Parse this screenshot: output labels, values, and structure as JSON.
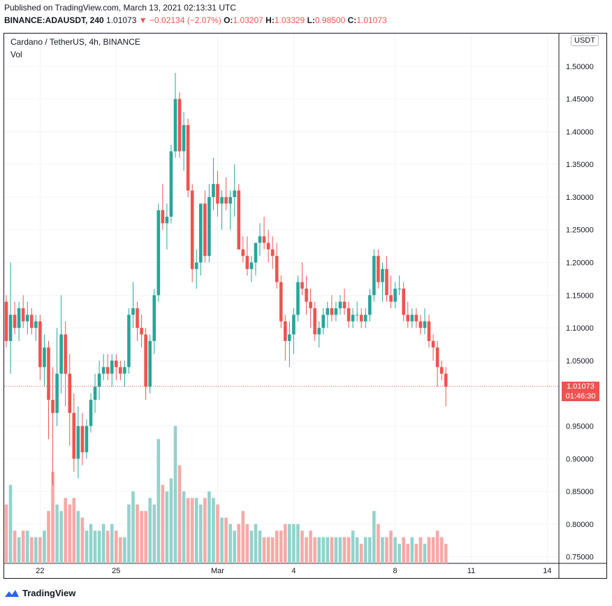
{
  "header": {
    "published": "Published on TradingView.com, March 13, 2021 02:13:31 UTC",
    "symbol": "BINANCE:ADAUSDT, 240",
    "last": "1.01073",
    "change": "−0.02134 (−2.07%)",
    "o_label": "O:",
    "o_value": "1.03207",
    "h_label": "H:",
    "h_value": "1.03329",
    "l_label": "L:",
    "l_value": "0.98500",
    "c_label": "C:",
    "c_value": "1.01073"
  },
  "legend": {
    "title": "Cardano / TetherUS, 4h, BINANCE",
    "vol": "Vol"
  },
  "currency": "USDT",
  "price_tag": {
    "price": "1.01073",
    "countdown": "01:46:30"
  },
  "footer": {
    "brand": "TradingView"
  },
  "colors": {
    "up": "#26a69a",
    "down": "#ef5350",
    "up_vol": "#92d2cc",
    "down_vol": "#f7a9a7"
  },
  "chart_data": {
    "type": "candlestick",
    "y_ticks": [
      "1.50000",
      "1.45000",
      "1.40000",
      "1.35000",
      "1.30000",
      "1.25000",
      "1.20000",
      "1.15000",
      "1.10000",
      "1.05000",
      "0.95000",
      "0.90000",
      "0.85000",
      "0.80000",
      "0.75000"
    ],
    "x_ticks": [
      {
        "label": "22",
        "index": 8
      },
      {
        "label": "25",
        "index": 26
      },
      {
        "label": "Mar",
        "index": 50
      },
      {
        "label": "4",
        "index": 68
      },
      {
        "label": "8",
        "index": 92
      },
      {
        "label": "11",
        "index": 110
      },
      {
        "label": "14",
        "index": 128
      }
    ],
    "ylim": [
      0.74,
      1.55
    ],
    "last_price": 1.01073,
    "candles": [
      [
        1.14,
        1.15,
        1.07,
        1.08,
        0.83
      ],
      [
        1.08,
        1.2,
        1.03,
        1.12,
        0.86
      ],
      [
        1.12,
        1.14,
        1.09,
        1.1,
        0.79
      ],
      [
        1.1,
        1.14,
        1.08,
        1.13,
        0.78
      ],
      [
        1.13,
        1.15,
        1.1,
        1.11,
        0.79
      ],
      [
        1.11,
        1.14,
        1.09,
        1.12,
        0.79
      ],
      [
        1.12,
        1.13,
        1.09,
        1.1,
        0.78
      ],
      [
        1.1,
        1.12,
        1.08,
        1.11,
        0.78
      ],
      [
        1.11,
        1.12,
        1.02,
        1.04,
        0.78
      ],
      [
        1.04,
        1.09,
        1.01,
        1.07,
        0.79
      ],
      [
        1.07,
        1.08,
        0.93,
        0.99,
        0.82
      ],
      [
        0.99,
        1.04,
        0.86,
        0.97,
        0.88
      ],
      [
        0.97,
        1.1,
        0.95,
        1.03,
        0.83
      ],
      [
        1.03,
        1.15,
        1.0,
        1.09,
        0.82
      ],
      [
        1.09,
        1.11,
        0.98,
        1.03,
        0.84
      ],
      [
        1.03,
        1.06,
        0.92,
        0.97,
        0.83
      ],
      [
        0.97,
        1.0,
        0.88,
        0.9,
        0.84
      ],
      [
        0.9,
        0.98,
        0.87,
        0.95,
        0.82
      ],
      [
        0.95,
        0.97,
        0.89,
        0.91,
        0.81
      ],
      [
        0.91,
        0.96,
        0.9,
        0.95,
        0.79
      ],
      [
        0.95,
        1.0,
        0.94,
        0.99,
        0.8
      ],
      [
        0.99,
        1.03,
        0.97,
        1.01,
        0.79
      ],
      [
        1.01,
        1.05,
        0.99,
        1.03,
        0.79
      ],
      [
        1.03,
        1.06,
        1.02,
        1.04,
        0.8
      ],
      [
        1.04,
        1.06,
        1.02,
        1.03,
        0.79
      ],
      [
        1.03,
        1.06,
        1.01,
        1.05,
        0.8
      ],
      [
        1.05,
        1.06,
        1.02,
        1.04,
        0.79
      ],
      [
        1.04,
        1.05,
        1.02,
        1.03,
        0.78
      ],
      [
        1.03,
        1.05,
        1.01,
        1.04,
        0.78
      ],
      [
        1.04,
        1.13,
        1.03,
        1.12,
        0.83
      ],
      [
        1.12,
        1.17,
        1.1,
        1.13,
        0.85
      ],
      [
        1.13,
        1.14,
        1.08,
        1.1,
        0.83
      ],
      [
        1.1,
        1.12,
        1.07,
        1.09,
        0.82
      ],
      [
        1.09,
        1.1,
        0.99,
        1.01,
        0.82
      ],
      [
        1.01,
        1.09,
        1.0,
        1.08,
        0.84
      ],
      [
        1.08,
        1.16,
        1.06,
        1.15,
        0.83
      ],
      [
        1.15,
        1.29,
        1.14,
        1.28,
        0.93
      ],
      [
        1.28,
        1.32,
        1.25,
        1.26,
        0.86
      ],
      [
        1.26,
        1.29,
        1.22,
        1.27,
        0.85
      ],
      [
        1.27,
        1.38,
        1.26,
        1.37,
        0.87
      ],
      [
        1.37,
        1.49,
        1.36,
        1.45,
        0.95
      ],
      [
        1.45,
        1.46,
        1.36,
        1.37,
        0.89
      ],
      [
        1.37,
        1.43,
        1.34,
        1.41,
        0.85
      ],
      [
        1.41,
        1.42,
        1.3,
        1.31,
        0.84
      ],
      [
        1.31,
        1.32,
        1.17,
        1.19,
        0.84
      ],
      [
        1.19,
        1.22,
        1.16,
        1.2,
        0.84
      ],
      [
        1.2,
        1.29,
        1.18,
        1.29,
        0.83
      ],
      [
        1.29,
        1.31,
        1.2,
        1.21,
        0.84
      ],
      [
        1.21,
        1.32,
        1.2,
        1.3,
        0.85
      ],
      [
        1.3,
        1.36,
        1.28,
        1.32,
        0.84
      ],
      [
        1.32,
        1.34,
        1.27,
        1.29,
        0.83
      ],
      [
        1.29,
        1.31,
        1.25,
        1.3,
        0.81
      ],
      [
        1.3,
        1.33,
        1.28,
        1.29,
        0.81
      ],
      [
        1.29,
        1.31,
        1.25,
        1.3,
        0.8
      ],
      [
        1.3,
        1.35,
        1.27,
        1.31,
        0.79
      ],
      [
        1.31,
        1.32,
        1.22,
        1.22,
        0.8
      ],
      [
        1.22,
        1.24,
        1.2,
        1.21,
        0.82
      ],
      [
        1.21,
        1.24,
        1.18,
        1.19,
        0.8
      ],
      [
        1.19,
        1.21,
        1.17,
        1.2,
        0.79
      ],
      [
        1.2,
        1.23,
        1.18,
        1.23,
        0.8
      ],
      [
        1.23,
        1.26,
        1.21,
        1.24,
        0.79
      ],
      [
        1.24,
        1.27,
        1.22,
        1.23,
        0.78
      ],
      [
        1.23,
        1.25,
        1.2,
        1.22,
        0.78
      ],
      [
        1.22,
        1.24,
        1.19,
        1.21,
        0.78
      ],
      [
        1.21,
        1.23,
        1.16,
        1.17,
        0.79
      ],
      [
        1.17,
        1.18,
        1.1,
        1.11,
        0.79
      ],
      [
        1.11,
        1.12,
        1.05,
        1.08,
        0.8
      ],
      [
        1.08,
        1.11,
        1.04,
        1.09,
        0.8
      ],
      [
        1.09,
        1.13,
        1.06,
        1.12,
        0.8
      ],
      [
        1.12,
        1.18,
        1.11,
        1.17,
        0.8
      ],
      [
        1.17,
        1.2,
        1.15,
        1.16,
        0.79
      ],
      [
        1.16,
        1.18,
        1.12,
        1.14,
        0.78
      ],
      [
        1.14,
        1.16,
        1.1,
        1.13,
        0.79
      ],
      [
        1.13,
        1.14,
        1.08,
        1.09,
        0.78
      ],
      [
        1.09,
        1.11,
        1.07,
        1.1,
        0.78
      ],
      [
        1.1,
        1.13,
        1.09,
        1.12,
        0.78
      ],
      [
        1.12,
        1.14,
        1.1,
        1.13,
        0.78
      ],
      [
        1.13,
        1.15,
        1.11,
        1.12,
        0.78
      ],
      [
        1.12,
        1.14,
        1.11,
        1.13,
        0.78
      ],
      [
        1.13,
        1.15,
        1.12,
        1.14,
        0.78
      ],
      [
        1.14,
        1.16,
        1.12,
        1.13,
        0.78
      ],
      [
        1.13,
        1.14,
        1.1,
        1.11,
        0.78
      ],
      [
        1.11,
        1.13,
        1.1,
        1.12,
        0.79
      ],
      [
        1.12,
        1.14,
        1.11,
        1.12,
        0.78
      ],
      [
        1.12,
        1.13,
        1.1,
        1.11,
        0.77
      ],
      [
        1.11,
        1.13,
        1.1,
        1.12,
        0.78
      ],
      [
        1.12,
        1.16,
        1.11,
        1.15,
        0.78
      ],
      [
        1.15,
        1.22,
        1.14,
        1.21,
        0.82
      ],
      [
        1.21,
        1.22,
        1.16,
        1.17,
        0.8
      ],
      [
        1.17,
        1.2,
        1.14,
        1.19,
        0.78
      ],
      [
        1.19,
        1.21,
        1.14,
        1.15,
        0.78
      ],
      [
        1.15,
        1.18,
        1.13,
        1.14,
        0.79
      ],
      [
        1.14,
        1.17,
        1.13,
        1.16,
        0.78
      ],
      [
        1.16,
        1.18,
        1.15,
        1.16,
        0.77
      ],
      [
        1.16,
        1.17,
        1.11,
        1.12,
        0.78
      ],
      [
        1.12,
        1.14,
        1.1,
        1.11,
        0.77
      ],
      [
        1.11,
        1.13,
        1.1,
        1.12,
        0.78
      ],
      [
        1.12,
        1.13,
        1.1,
        1.11,
        0.77
      ],
      [
        1.11,
        1.12,
        1.09,
        1.1,
        0.78
      ],
      [
        1.1,
        1.13,
        1.09,
        1.11,
        0.77
      ],
      [
        1.11,
        1.12,
        1.07,
        1.08,
        0.78
      ],
      [
        1.08,
        1.09,
        1.05,
        1.07,
        0.78
      ],
      [
        1.07,
        1.08,
        1.01,
        1.04,
        0.79
      ],
      [
        1.04,
        1.05,
        1.02,
        1.03,
        0.78
      ],
      [
        1.03,
        1.04,
        0.98,
        1.01,
        0.77
      ]
    ]
  }
}
